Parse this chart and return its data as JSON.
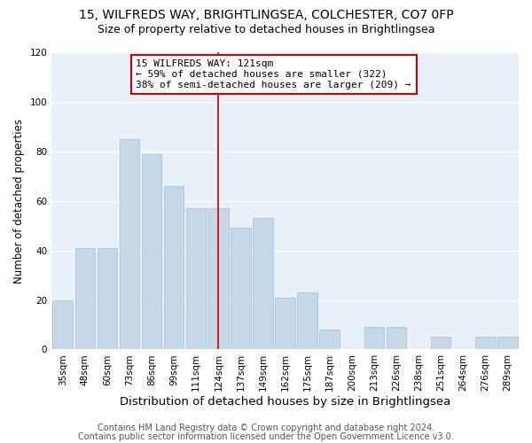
{
  "title_line1": "15, WILFREDS WAY, BRIGHTLINGSEA, COLCHESTER, CO7 0FP",
  "title_line2": "Size of property relative to detached houses in Brightlingsea",
  "xlabel": "Distribution of detached houses by size in Brightlingsea",
  "ylabel": "Number of detached properties",
  "categories": [
    "35sqm",
    "48sqm",
    "60sqm",
    "73sqm",
    "86sqm",
    "99sqm",
    "111sqm",
    "124sqm",
    "137sqm",
    "149sqm",
    "162sqm",
    "175sqm",
    "187sqm",
    "200sqm",
    "213sqm",
    "226sqm",
    "238sqm",
    "251sqm",
    "264sqm",
    "276sqm",
    "289sqm"
  ],
  "values": [
    20,
    41,
    41,
    85,
    79,
    66,
    57,
    57,
    49,
    53,
    21,
    23,
    8,
    0,
    9,
    9,
    0,
    5,
    0,
    5,
    5
  ],
  "bar_color": "#c5d8e8",
  "bar_edge_color": "#a8c0d0",
  "vline_x_index": 7,
  "vline_color": "#cc0000",
  "annotation_line1": "15 WILFREDS WAY: 121sqm",
  "annotation_line2": "← 59% of detached houses are smaller (322)",
  "annotation_line3": "38% of semi-detached houses are larger (209) →",
  "annotation_box_color": "#cc0000",
  "ylim": [
    0,
    120
  ],
  "yticks": [
    0,
    20,
    40,
    60,
    80,
    100,
    120
  ],
  "background_color": "#e8f0f8",
  "footer_line1": "Contains HM Land Registry data © Crown copyright and database right 2024.",
  "footer_line2": "Contains public sector information licensed under the Open Government Licence v3.0.",
  "title_fontsize": 10,
  "subtitle_fontsize": 9,
  "xlabel_fontsize": 9.5,
  "ylabel_fontsize": 8.5,
  "tick_fontsize": 7.5,
  "footer_fontsize": 7,
  "ann_fontsize": 8
}
